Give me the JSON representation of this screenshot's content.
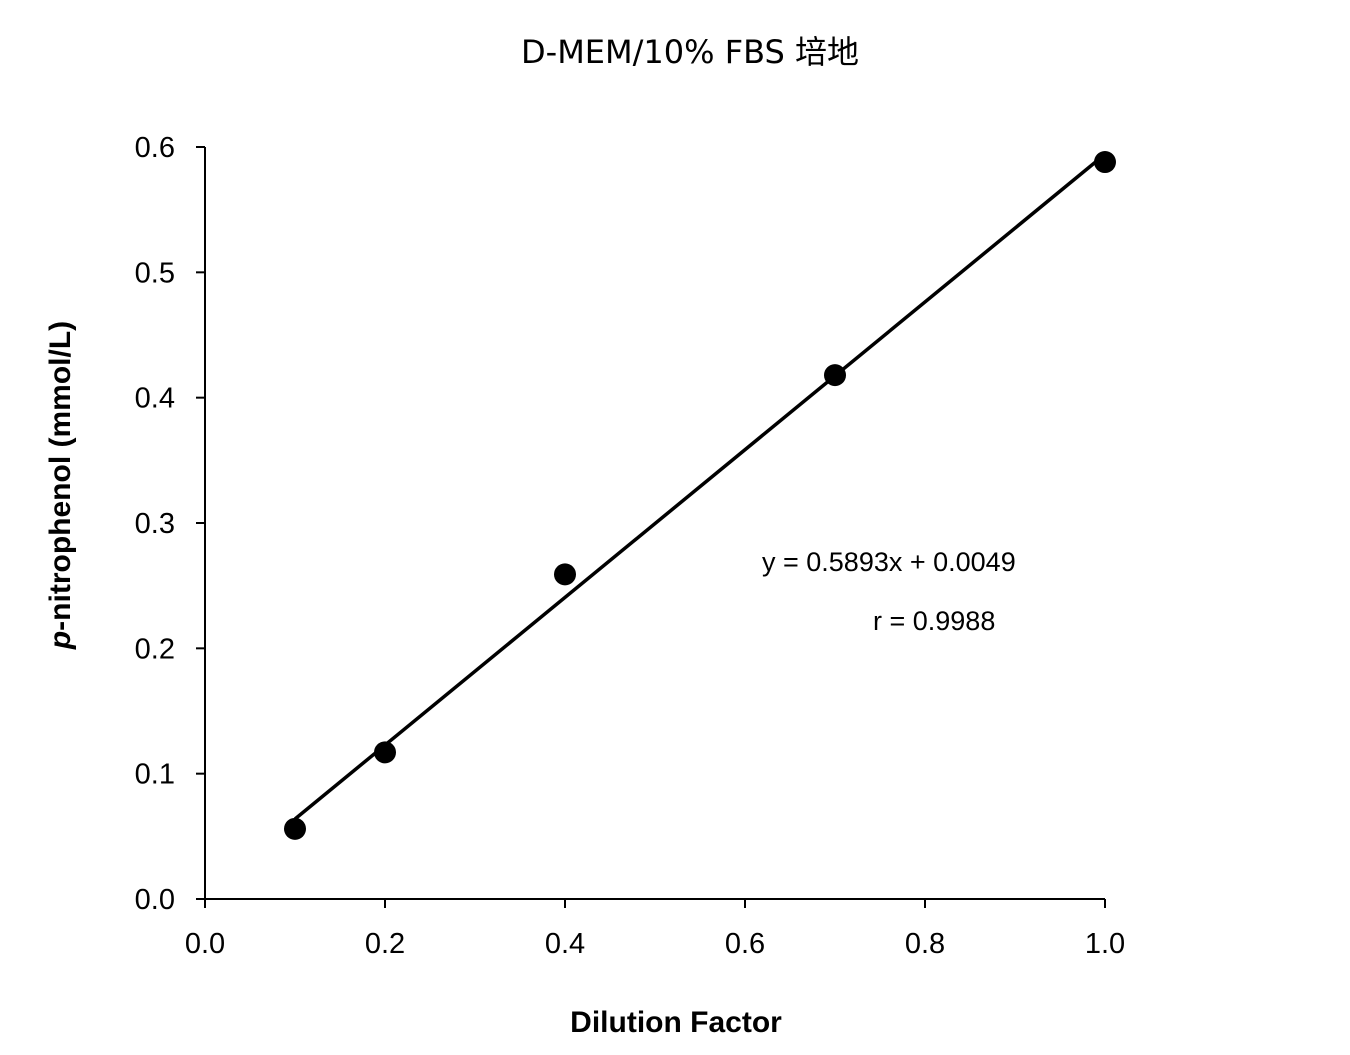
{
  "chart_data": {
    "type": "scatter",
    "title": "D-MEM/10% FBS 培地",
    "xlabel": "Dilution Factor",
    "ylabel_italic": "p",
    "ylabel_rest": "-nitrophenol (mmol/L)",
    "xlim": [
      0,
      1.0
    ],
    "ylim": [
      0,
      0.6
    ],
    "xticks": [
      "0.0",
      "0.2",
      "0.4",
      "0.6",
      "0.8",
      "1.0"
    ],
    "yticks": [
      "0.0",
      "0.1",
      "0.2",
      "0.3",
      "0.4",
      "0.5",
      "0.6"
    ],
    "grid": false,
    "points": [
      {
        "x": 0.1,
        "y": 0.056
      },
      {
        "x": 0.2,
        "y": 0.117
      },
      {
        "x": 0.4,
        "y": 0.259
      },
      {
        "x": 0.7,
        "y": 0.418
      },
      {
        "x": 1.0,
        "y": 0.588
      }
    ],
    "trendline": {
      "slope": 0.5893,
      "intercept": 0.0049,
      "x_range": [
        0.1,
        1.0
      ]
    },
    "annotations": {
      "equation": "y = 0.5893x + 0.0049",
      "r": "r = 0.9988"
    },
    "colors": {
      "marker": "#000000",
      "line": "#000000"
    }
  }
}
